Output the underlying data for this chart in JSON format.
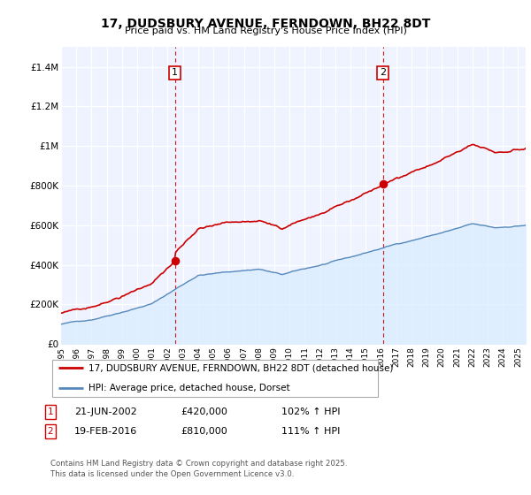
{
  "title": "17, DUDSBURY AVENUE, FERNDOWN, BH22 8DT",
  "subtitle": "Price paid vs. HM Land Registry's House Price Index (HPI)",
  "ylim": [
    0,
    1500000
  ],
  "yticks": [
    0,
    200000,
    400000,
    600000,
    800000,
    1000000,
    1200000,
    1400000
  ],
  "ytick_labels": [
    "£0",
    "£200K",
    "£400K",
    "£600K",
    "£800K",
    "£1M",
    "£1.2M",
    "£1.4M"
  ],
  "year_start": 1995,
  "year_end": 2025,
  "sale1_year": 2002.47,
  "sale1_price": 420000,
  "sale1_date": "21-JUN-2002",
  "sale1_hpi_pct": "102% ↑ HPI",
  "sale2_year": 2016.12,
  "sale2_price": 810000,
  "sale2_date": "19-FEB-2016",
  "sale2_hpi_pct": "111% ↑ HPI",
  "house_line_color": "#cc0000",
  "hpi_line_color": "#5588bb",
  "hpi_fill_color": "#ddeeff",
  "background_color": "#eef3ff",
  "grid_color": "#d0d8e8",
  "legend_label_house": "17, DUDSBURY AVENUE, FERNDOWN, BH22 8DT (detached house)",
  "legend_label_hpi": "HPI: Average price, detached house, Dorset",
  "footer": "Contains HM Land Registry data © Crown copyright and database right 2025.\nThis data is licensed under the Open Government Licence v3.0."
}
